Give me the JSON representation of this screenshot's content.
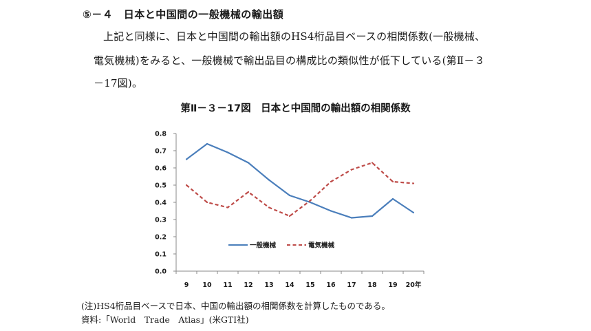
{
  "section": {
    "heading": "⑤－４　日本と中国間の一般機械の輸出額",
    "paragraph_lines": [
      "上記と同様に、日本と中国間の輸出額のHS4桁品目ベースの相関係数(一般機械、",
      "電気機械)をみると、一般機械で輸出品目の構成比の類似性が低下している(第Ⅱ－３",
      "－17図)。"
    ]
  },
  "figure": {
    "title": "第Ⅱ－３－17図　日本と中国間の輸出額の相関係数",
    "note": "(注)HS4桁品目ベースで日本、中国の輸出額の相関係数を計算したものである。",
    "source": "資料:「World　Trade　Atlas」(米GTI社)"
  },
  "chart_data": {
    "type": "line",
    "title": "日本と中国間の輸出額の相関係数",
    "x": [
      "9",
      "10",
      "11",
      "12",
      "13",
      "14",
      "15",
      "16",
      "17",
      "18",
      "19",
      "20年"
    ],
    "series": [
      {
        "name": "一般機械",
        "color": "#4a7ebb",
        "style": "solid",
        "values": [
          0.65,
          0.74,
          0.69,
          0.63,
          0.53,
          0.44,
          0.4,
          0.35,
          0.31,
          0.32,
          0.42,
          0.34
        ]
      },
      {
        "name": "電気機械",
        "color": "#be4b48",
        "style": "dashed",
        "values": [
          0.5,
          0.4,
          0.37,
          0.46,
          0.37,
          0.32,
          0.41,
          0.52,
          0.59,
          0.63,
          0.52,
          0.51
        ]
      }
    ],
    "yticks": [
      "0.0",
      "0.1",
      "0.2",
      "0.3",
      "0.4",
      "0.5",
      "0.6",
      "0.7",
      "0.8"
    ],
    "ylim": [
      0,
      0.8
    ],
    "grid": false,
    "legend": "center",
    "xlabel": "",
    "ylabel": ""
  }
}
